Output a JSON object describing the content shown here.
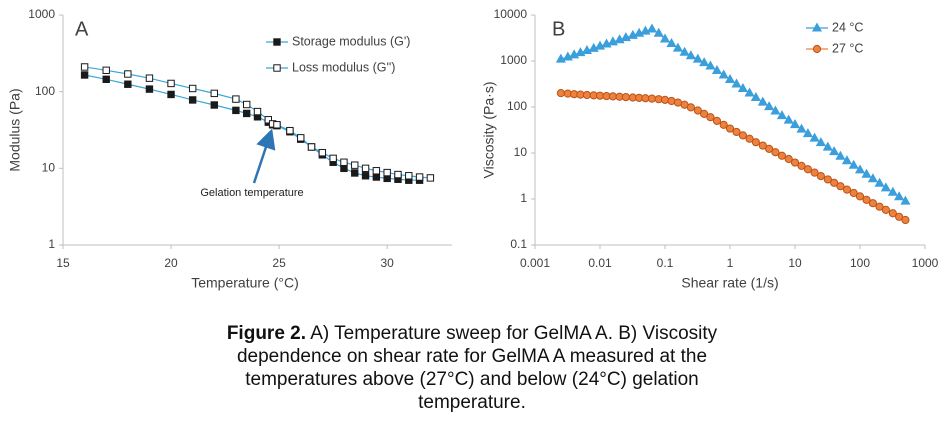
{
  "chart_data": [
    {
      "type": "line",
      "panel_label": "A",
      "x_label": "Temperature (°C)",
      "y_label": "Modulus (Pa)",
      "annotation": "Gelation temperature",
      "xlim": [
        15,
        33
      ],
      "xticks": [
        15,
        20,
        25,
        30
      ],
      "ylim": [
        1,
        1000
      ],
      "yticks": [
        1,
        10,
        100,
        1000
      ],
      "ylog": true,
      "legend": "upper right",
      "grid": false,
      "x": [
        16,
        17,
        18,
        19,
        20,
        21,
        22,
        23,
        23.5,
        24,
        24.5,
        24.7,
        24.9,
        25.5,
        26,
        26.5,
        27,
        27.5,
        28,
        28.5,
        29,
        29.5,
        30,
        30.5,
        31,
        31.5,
        32
      ],
      "series": [
        {
          "name": "Storage modulus (G')",
          "color": "#3aa6dc",
          "marker": "square",
          "marker_fill": "#1a1a1a",
          "values": [
            165,
            145,
            125,
            108,
            92,
            78,
            67,
            57,
            52,
            47,
            40,
            37,
            36,
            30,
            24,
            19,
            15,
            12,
            10,
            8.7,
            8,
            7.7,
            7.4,
            7.2,
            7,
            7,
            null
          ]
        },
        {
          "name": "Loss modulus (G'')",
          "color": "#3aa6dc",
          "marker": "square",
          "marker_fill": "#ffffff",
          "values": [
            210,
            190,
            170,
            150,
            128,
            110,
            95,
            80,
            68,
            55,
            43,
            38,
            37,
            31,
            25,
            19,
            16,
            13.5,
            12,
            11,
            10,
            9.3,
            8.8,
            8.3,
            8,
            7.7,
            7.5
          ]
        }
      ]
    },
    {
      "type": "line",
      "panel_label": "B",
      "x_label": "Shear rate (1/s)",
      "y_label": "Viscosity (Pa·s)",
      "xlim": [
        0.001,
        1000
      ],
      "xticks": [
        0.001,
        0.01,
        0.1,
        1,
        10,
        100,
        1000
      ],
      "xlog": true,
      "ylim": [
        0.1,
        10000
      ],
      "yticks": [
        0.1,
        1,
        10,
        100,
        1000,
        10000
      ],
      "ylog": true,
      "legend": "upper right",
      "grid": false,
      "x": [
        0.0025,
        0.0032,
        0.004,
        0.005,
        0.0063,
        0.008,
        0.01,
        0.0126,
        0.0158,
        0.02,
        0.025,
        0.032,
        0.04,
        0.05,
        0.063,
        0.08,
        0.1,
        0.126,
        0.158,
        0.2,
        0.25,
        0.32,
        0.4,
        0.5,
        0.63,
        0.8,
        1,
        1.26,
        1.58,
        2,
        2.5,
        3.2,
        4,
        5,
        6.3,
        8,
        10,
        12.6,
        15.8,
        20,
        25,
        32,
        40,
        50,
        63,
        80,
        100,
        126,
        158,
        200,
        250,
        320,
        400,
        500
      ],
      "series": [
        {
          "name": "24 °C",
          "color": "#3b9fdb",
          "marker": "triangle",
          "marker_fill": "#3b9fdb",
          "values": [
            1100,
            1220,
            1360,
            1520,
            1690,
            1880,
            2100,
            2340,
            2600,
            2900,
            3230,
            3600,
            4000,
            4460,
            4970,
            4000,
            3000,
            2400,
            1900,
            1550,
            1300,
            1100,
            920,
            780,
            622,
            497,
            396,
            316,
            252,
            201,
            161,
            128,
            102,
            82,
            65,
            52,
            41.5,
            33,
            26.4,
            21,
            16.8,
            13.4,
            10.7,
            8.5,
            6.8,
            5.4,
            4.3,
            3.45,
            2.75,
            2.2,
            1.75,
            1.4,
            1.12,
            0.9
          ]
        },
        {
          "name": "27 °C",
          "color": "#f0803c",
          "marker": "circle",
          "marker_fill": "#f0803c",
          "values": [
            200,
            195,
            190,
            186,
            182,
            179,
            176,
            173,
            170,
            167,
            164,
            161,
            158,
            155,
            152,
            148,
            143,
            135,
            125,
            112,
            98,
            84,
            71,
            60,
            50,
            41,
            34,
            28.7,
            24.2,
            20.4,
            17.2,
            14.5,
            12.3,
            10.4,
            8.7,
            7.4,
            6.2,
            5.25,
            4.43,
            3.74,
            3.15,
            2.66,
            2.25,
            1.9,
            1.6,
            1.35,
            1.14,
            0.96,
            0.81,
            0.68,
            0.58,
            0.49,
            0.41,
            0.35
          ]
        }
      ]
    }
  ],
  "caption": {
    "label": "Figure 2.",
    "text": "A) Temperature sweep for GelMA A. B) Viscosity dependence on shear rate for GelMA A measured at the temperatures above (27°C) and below (24°C) gelation temperature."
  }
}
